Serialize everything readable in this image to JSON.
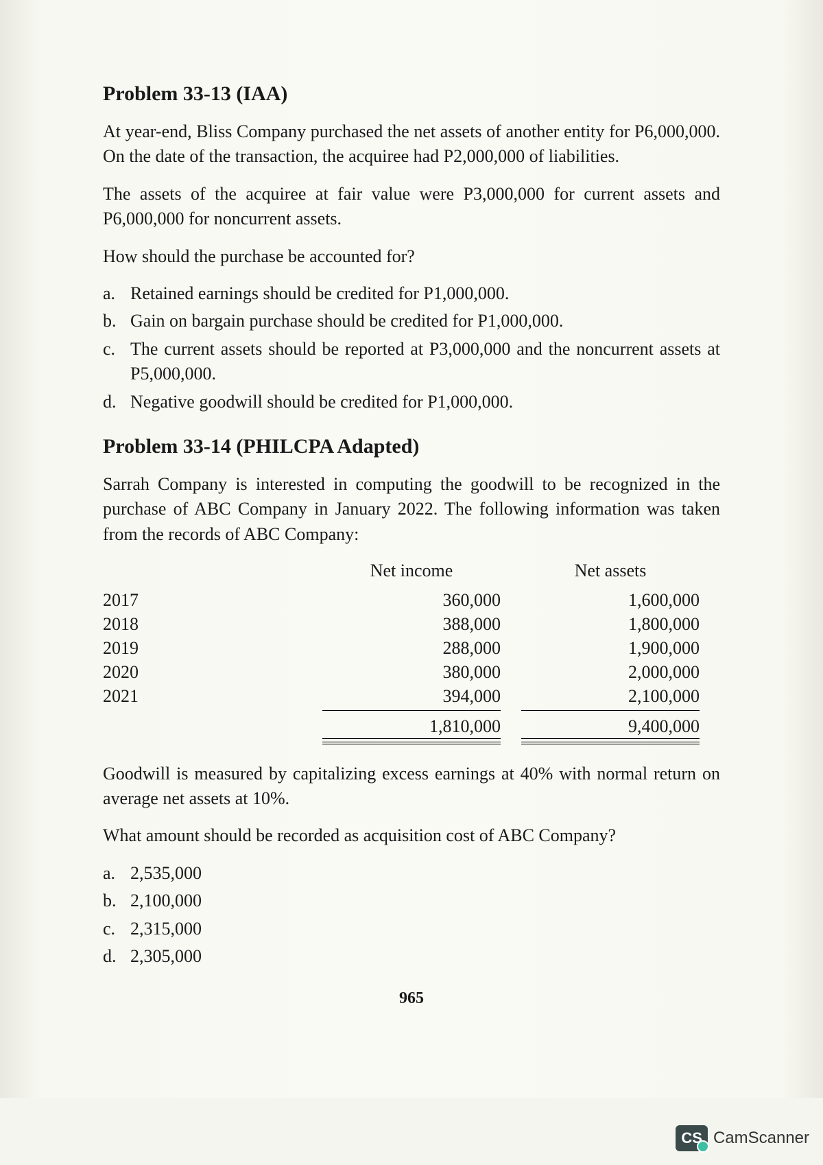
{
  "problem1": {
    "title": "Problem 33-13",
    "source": "(IAA)",
    "para1": "At year-end, Bliss Company purchased the net assets of another entity for P6,000,000. On the date of the transaction, the acquiree had P2,000,000 of liabilities.",
    "para2": "The assets of the acquiree at fair value were P3,000,000 for current assets and P6,000,000 for noncurrent assets.",
    "question": "How should the purchase be accounted for?",
    "choices": [
      {
        "label": "a.",
        "text": "Retained earnings should be credited for P1,000,000."
      },
      {
        "label": "b.",
        "text": "Gain on bargain purchase should be credited for P1,000,000."
      },
      {
        "label": "c.",
        "text": "The current assets should be reported at P3,000,000 and the noncurrent assets at P5,000,000."
      },
      {
        "label": "d.",
        "text": "Negative goodwill should be credited for P1,000,000."
      }
    ]
  },
  "problem2": {
    "title": "Problem 33-14",
    "source": "(PHILCPA Adapted)",
    "para1": "Sarrah Company is interested in computing the goodwill to be recognized in the purchase of ABC Company in January 2022. The following information was taken from the records of ABC Company:",
    "table": {
      "headers": {
        "col2": "Net income",
        "col3": "Net assets"
      },
      "rows": [
        {
          "year": "2017",
          "income": "360,000",
          "assets": "1,600,000"
        },
        {
          "year": "2018",
          "income": "388,000",
          "assets": "1,800,000"
        },
        {
          "year": "2019",
          "income": "288,000",
          "assets": "1,900,000"
        },
        {
          "year": "2020",
          "income": "380,000",
          "assets": "2,000,000"
        },
        {
          "year": "2021",
          "income": "394,000",
          "assets": "2,100,000"
        }
      ],
      "totals": {
        "income": "1,810,000",
        "assets": "9,400,000"
      }
    },
    "para2": "Goodwill is measured by capitalizing excess earnings at 40% with normal return on average net assets at 10%.",
    "question": "What amount should be recorded as acquisition cost of ABC Company?",
    "choices": [
      {
        "label": "a.",
        "text": "2,535,000"
      },
      {
        "label": "b.",
        "text": "2,100,000"
      },
      {
        "label": "c.",
        "text": "2,315,000"
      },
      {
        "label": "d.",
        "text": "2,305,000"
      }
    ]
  },
  "page_number": "965",
  "watermark": {
    "badge": "CS",
    "text": "CamScanner"
  }
}
